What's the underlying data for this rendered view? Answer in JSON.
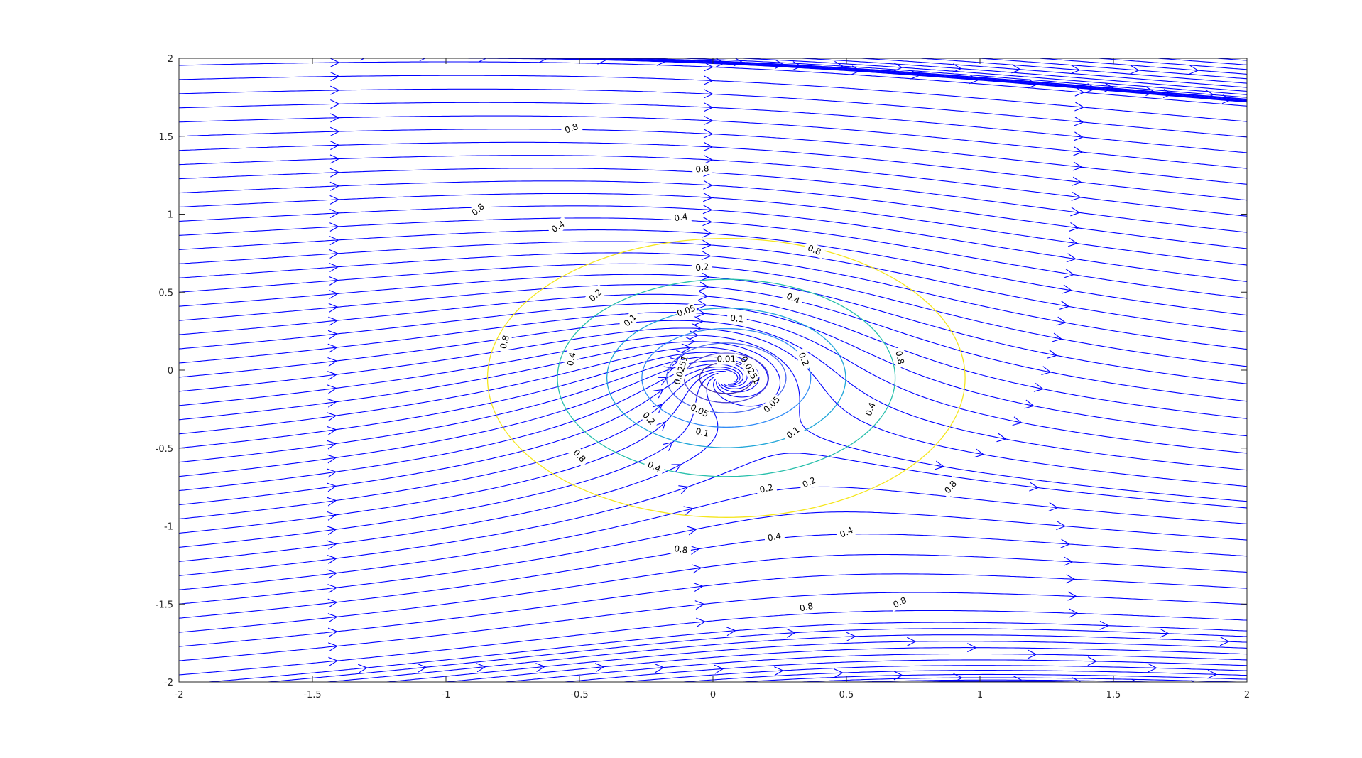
{
  "chart_data": {
    "type": "streamline-contour",
    "title": "",
    "xlabel": "",
    "ylabel": "",
    "xlim": [
      -2,
      2
    ],
    "ylim": [
      -2,
      2
    ],
    "xticks": [
      -2,
      -1.5,
      -1,
      -0.5,
      0,
      0.5,
      1,
      1.5,
      2
    ],
    "yticks": [
      -2,
      -1.5,
      -1,
      -0.5,
      0,
      0.5,
      1,
      1.5,
      2
    ],
    "xtick_labels": [
      "-2",
      "-1.5",
      "-1",
      "-0.5",
      "0",
      "0.5",
      "1",
      "1.5",
      "2"
    ],
    "ytick_labels": [
      "-2",
      "-1.5",
      "-1",
      "-0.5",
      "0",
      "0.5",
      "1",
      "1.5",
      "2"
    ],
    "grid": false,
    "legend": "none",
    "field": {
      "description_units": "data units",
      "uniform_flow": [
        1,
        0
      ],
      "singularity_center": [
        0.05,
        -0.05
      ],
      "circulation_strength": -0.35,
      "vortex_core": 0.06
    },
    "streamlines": {
      "color": "#0000ff",
      "seed_lines_x": [
        -2,
        2
      ],
      "seed_y_start": -2,
      "seed_y_end": 2,
      "seed_count_per_edge": 44
    },
    "contours": {
      "center": [
        0.05,
        -0.05
      ],
      "levels": [
        0.01,
        0.0251,
        0.05,
        0.1,
        0.2,
        0.4,
        0.8
      ],
      "colors": {
        "0.01": "#3e26a8",
        "0.0251": "#4a3fd3",
        "0.05": "#4866f0",
        "0.1": "#2f8bf5",
        "0.2": "#1fa5d8",
        "0.4": "#27bfab",
        "0.8": "#f5e61e"
      },
      "labels": [
        {
          "level": "0.8",
          "text": "0.8",
          "x": -0.53,
          "y": 1.55
        },
        {
          "level": "0.8",
          "text": "0.8",
          "x": -0.88,
          "y": 1.03
        },
        {
          "level": "0.8",
          "text": "0.8",
          "x": -0.78,
          "y": 0.18
        },
        {
          "level": "0.8",
          "text": "0.8",
          "x": -0.5,
          "y": -0.55
        },
        {
          "level": "0.8",
          "text": "0.8",
          "x": -0.12,
          "y": -1.15
        },
        {
          "level": "0.8",
          "text": "0.8",
          "x": 0.35,
          "y": -1.52
        },
        {
          "level": "0.8",
          "text": "0.8",
          "x": 0.7,
          "y": -1.49
        },
        {
          "level": "0.8",
          "text": "0.8",
          "x": 0.89,
          "y": -0.75
        },
        {
          "level": "0.8",
          "text": "0.8",
          "x": 0.7,
          "y": 0.08
        },
        {
          "level": "0.8",
          "text": "0.8",
          "x": 0.38,
          "y": 0.77
        },
        {
          "level": "0.8",
          "text": "0.8",
          "x": -0.04,
          "y": 1.29
        },
        {
          "level": "0.4",
          "text": "0.4",
          "x": -0.58,
          "y": 0.92
        },
        {
          "level": "0.4",
          "text": "0.4",
          "x": -0.53,
          "y": 0.07
        },
        {
          "level": "0.4",
          "text": "0.4",
          "x": -0.22,
          "y": -0.62
        },
        {
          "level": "0.4",
          "text": "0.4",
          "x": 0.23,
          "y": -1.07
        },
        {
          "level": "0.4",
          "text": "0.4",
          "x": 0.5,
          "y": -1.04
        },
        {
          "level": "0.4",
          "text": "0.4",
          "x": 0.59,
          "y": -0.25
        },
        {
          "level": "0.4",
          "text": "0.4",
          "x": 0.3,
          "y": 0.46
        },
        {
          "level": "0.4",
          "text": "0.4",
          "x": -0.12,
          "y": 0.98
        },
        {
          "level": "0.2",
          "text": "0.2",
          "x": -0.44,
          "y": 0.48
        },
        {
          "level": "0.2",
          "text": "0.2",
          "x": -0.24,
          "y": -0.31
        },
        {
          "level": "0.2",
          "text": "0.2",
          "x": 0.2,
          "y": -0.76
        },
        {
          "level": "0.2",
          "text": "0.2",
          "x": 0.36,
          "y": -0.72
        },
        {
          "level": "0.2",
          "text": "0.2",
          "x": 0.34,
          "y": 0.07
        },
        {
          "level": "0.2",
          "text": "0.2",
          "x": -0.04,
          "y": 0.66
        },
        {
          "level": "0.1",
          "text": "0.1",
          "x": -0.31,
          "y": 0.32
        },
        {
          "level": "0.1",
          "text": "0.1",
          "x": -0.04,
          "y": -0.4
        },
        {
          "level": "0.1",
          "text": "0.1",
          "x": 0.3,
          "y": -0.4
        },
        {
          "level": "0.1",
          "text": "0.1",
          "x": 0.09,
          "y": 0.33
        },
        {
          "level": "0.05",
          "text": "0.05",
          "x": -0.1,
          "y": 0.38
        },
        {
          "level": "0.05",
          "text": "0.05",
          "x": -0.05,
          "y": -0.26
        },
        {
          "level": "0.05",
          "text": "0.05",
          "x": 0.22,
          "y": -0.22
        },
        {
          "level": "0.0251",
          "text": "0.0251",
          "x": -0.12,
          "y": 0.0
        },
        {
          "level": "0.0251",
          "text": "0.0251",
          "x": 0.14,
          "y": 0.0
        },
        {
          "level": "0.01",
          "text": "0.01",
          "x": 0.05,
          "y": 0.07
        }
      ]
    }
  }
}
